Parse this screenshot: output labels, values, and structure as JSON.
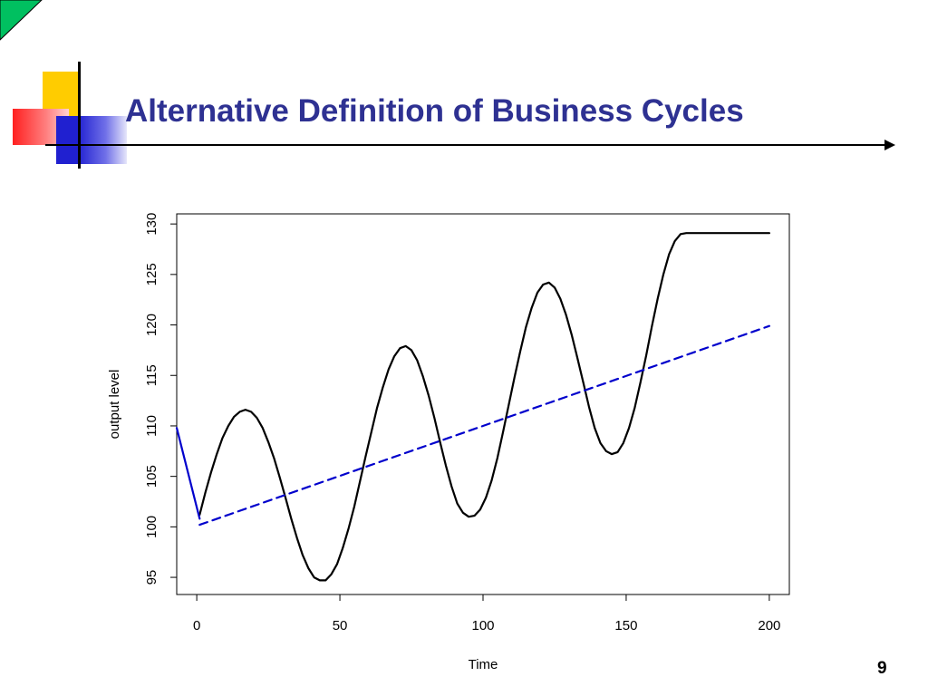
{
  "slide": {
    "title": "Alternative Definition of Business Cycles",
    "page_number": "9"
  },
  "colors": {
    "title": "#2e3192",
    "corner_tab": "#00c060",
    "decor_yellow": "#ffcc00",
    "decor_red": "#ff2020",
    "decor_blue": "#2020d0",
    "actual_series": "#000000",
    "trend_series": "#0000cc"
  },
  "chart_data": {
    "type": "line",
    "title": "",
    "xlabel": "Time",
    "ylabel": "output level",
    "xlim": [
      -7,
      207
    ],
    "ylim": [
      93.3,
      131.0
    ],
    "xticks": [
      0,
      50,
      100,
      150,
      200
    ],
    "yticks": [
      95,
      100,
      105,
      110,
      115,
      120,
      125,
      130
    ],
    "grid": false,
    "legend": "none",
    "series": [
      {
        "style": "solid",
        "color": "#000000",
        "x": [
          1,
          3,
          5,
          7,
          9,
          11,
          13,
          15,
          17,
          19,
          21,
          23,
          25,
          27,
          29,
          31,
          33,
          35,
          37,
          39,
          41,
          43,
          45,
          47,
          49,
          51,
          53,
          55,
          57,
          59,
          61,
          63,
          65,
          67,
          69,
          71,
          73,
          75,
          77,
          79,
          81,
          83,
          85,
          87,
          89,
          91,
          93,
          95,
          97,
          99,
          101,
          103,
          105,
          107,
          109,
          111,
          113,
          115,
          117,
          119,
          121,
          123,
          125,
          127,
          129,
          131,
          133,
          135,
          137,
          139,
          141,
          143,
          145,
          147,
          149,
          151,
          153,
          155,
          157,
          159,
          161,
          163,
          165,
          167,
          169,
          171,
          173,
          175,
          177,
          179,
          181,
          183,
          185,
          187,
          189,
          191,
          193,
          195,
          197,
          199,
          200
        ],
        "y": [
          101.2,
          103.4,
          105.4,
          107.2,
          108.8,
          110.0,
          110.9,
          111.4,
          111.6,
          111.4,
          110.8,
          109.8,
          108.4,
          106.8,
          104.9,
          102.9,
          100.8,
          98.9,
          97.2,
          95.9,
          95.0,
          94.7,
          94.7,
          95.3,
          96.3,
          97.9,
          99.8,
          102.0,
          104.5,
          107.0,
          109.4,
          111.8,
          113.8,
          115.6,
          116.9,
          117.7,
          117.9,
          117.5,
          116.5,
          114.9,
          113.0,
          110.8,
          108.4,
          106.1,
          104.0,
          102.3,
          101.4,
          101.0,
          101.1,
          101.7,
          102.9,
          104.6,
          106.8,
          109.4,
          112.1,
          114.8,
          117.4,
          119.8,
          121.7,
          123.2,
          124.0,
          124.2,
          123.7,
          122.6,
          121.0,
          119.0,
          116.7,
          114.3,
          111.9,
          109.8,
          108.3,
          107.5,
          107.2,
          107.4,
          108.3,
          109.8,
          111.8,
          114.3,
          117.0,
          119.9,
          122.6,
          125.0,
          127.0,
          128.3,
          129.0,
          129.1,
          129.1,
          129.1,
          129.1,
          129.1,
          129.1,
          129.1,
          129.1,
          129.1,
          129.1,
          129.1,
          129.1,
          129.1,
          129.1,
          129.1,
          129.1
        ]
      },
      {
        "style": "dashed",
        "color": "#0000cc",
        "x": [
          1,
          200
        ],
        "y": [
          100.2,
          119.9
        ]
      },
      {
        "style": "solid",
        "color": "#0000cc",
        "x": [
          -7,
          1
        ],
        "y": [
          109.8,
          100.8
        ]
      }
    ]
  }
}
